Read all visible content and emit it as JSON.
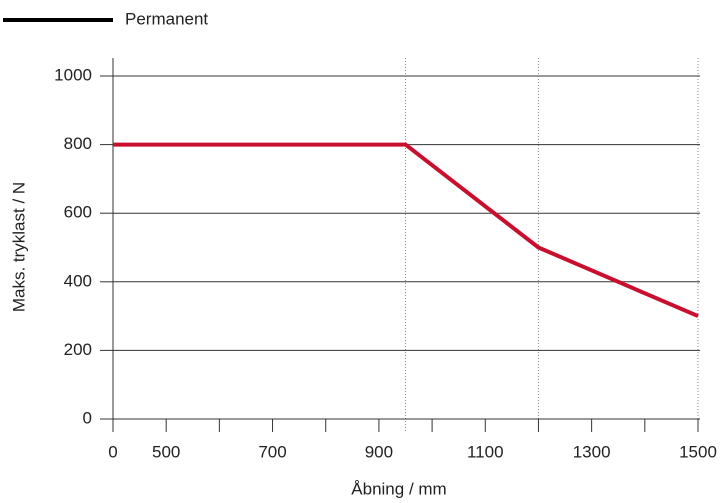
{
  "chart_data": {
    "type": "line",
    "x_label": "Åbning / mm",
    "y_label": "Maks. tryklast / N",
    "x": [
      400,
      950,
      1200,
      1500
    ],
    "series": [
      {
        "name": "Permanent",
        "color": "#c8102e",
        "values": [
          800,
          800,
          500,
          300
        ]
      }
    ],
    "legend_color": "#000000",
    "legend": "top-left",
    "xlim": [
      400,
      1500
    ],
    "ylim": [
      0,
      1000
    ],
    "xticks": [
      {
        "value": 400,
        "label": "0"
      },
      500,
      700,
      900,
      1100,
      1300,
      1500
    ],
    "minor_xticks": [
      600,
      800,
      1000,
      1200,
      1400
    ],
    "yticks": [
      0,
      200,
      400,
      600,
      800,
      1000
    ],
    "vlines": [
      950,
      1200,
      1500
    ],
    "grid": true
  }
}
